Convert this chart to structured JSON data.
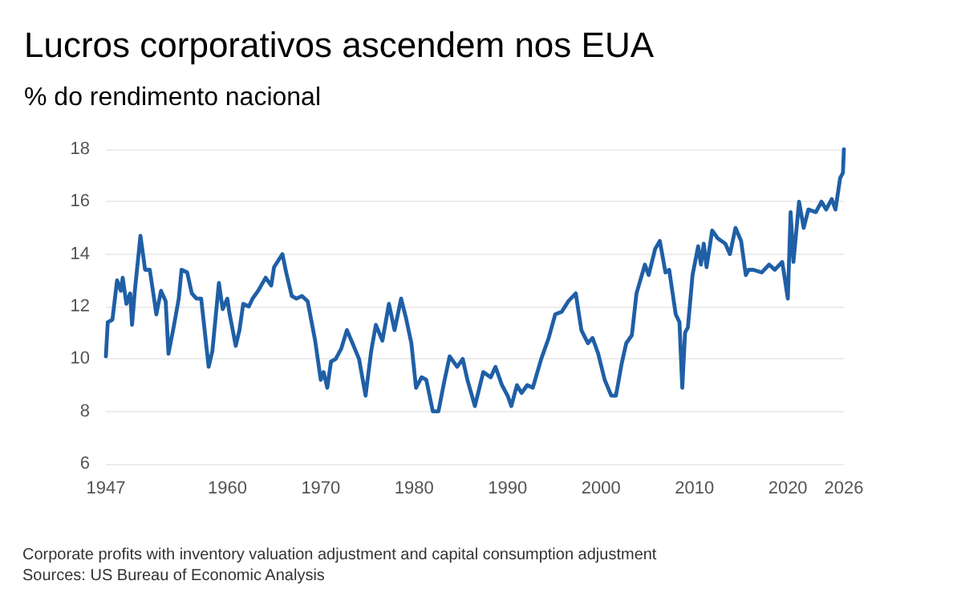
{
  "chart_data": {
    "type": "line",
    "title": "Lucros corporativos ascendem nos EUA",
    "subtitle": "% do rendimento nacional",
    "annotations": [
      "Corporate profits with inventory valuation adjustment and capital consumption adjustment",
      "Sources: US Bureau of Economic Analysis"
    ],
    "x": [
      1947,
      1947.2,
      1947.7,
      1948.2,
      1948.6,
      1948.8,
      1949.2,
      1949.6,
      1949.8,
      1950.1,
      1950.7,
      1951.2,
      1951.7,
      1952.2,
      1952.4,
      1952.9,
      1953.4,
      1953.7,
      1954.3,
      1954.8,
      1955.1,
      1955.7,
      1956.2,
      1956.7,
      1957.2,
      1958,
      1958.4,
      1959.1,
      1959.5,
      1960,
      1960.2,
      1960.9,
      1961.3,
      1961.7,
      1962.3,
      1962.7,
      1963.3,
      1964.1,
      1964.7,
      1965,
      1965.9,
      1966.3,
      1966.9,
      1967.4,
      1968,
      1968.6,
      1969.4,
      1970,
      1970.3,
      1970.7,
      1971.1,
      1971.6,
      1972.2,
      1972.8,
      1973.4,
      1974.1,
      1974.8,
      1975.4,
      1975.9,
      1976.6,
      1977.3,
      1977.9,
      1978.6,
      1979.1,
      1979.7,
      1980.2,
      1980.8,
      1981.3,
      1982,
      1982.6,
      1983.2,
      1983.8,
      1984.6,
      1985.2,
      1985.7,
      1986.5,
      1987.4,
      1988.2,
      1988.7,
      1989.4,
      1990,
      1990.4,
      1991,
      1991.5,
      1992.1,
      1992.7,
      1993.6,
      1994.4,
      1995.1,
      1995.8,
      1996.5,
      1997.3,
      1997.9,
      1998.6,
      1999.1,
      1999.7,
      2000.4,
      2001.1,
      2001.6,
      2002.2,
      2002.7,
      2003.3,
      2003.8,
      2004.7,
      2005.1,
      2005.8,
      2006.3,
      2006.9,
      2007.3,
      2008,
      2008.4,
      2008.7,
      2009,
      2009.3,
      2009.8,
      2010.4,
      2010.7,
      2011,
      2011.3,
      2011.9,
      2012.5,
      2013.3,
      2013.8,
      2014.4,
      2015,
      2015.5,
      2015.8,
      2016.3,
      2017.2,
      2018,
      2018.6,
      2019.4,
      2020,
      2020.3,
      2020.6,
      2021.2,
      2021.7,
      2022.2,
      2023,
      2023.6,
      2024.1,
      2024.7,
      2025.1,
      2025.6,
      2025.9,
      2026
    ],
    "series": [
      {
        "color": "#1f5fa6",
        "values": [
          10.1,
          11.4,
          11.5,
          13.0,
          12.6,
          13.1,
          12.1,
          12.5,
          11.3,
          12.6,
          14.7,
          13.4,
          13.4,
          12.2,
          11.7,
          12.6,
          12.2,
          10.2,
          11.3,
          12.3,
          13.4,
          13.3,
          12.5,
          12.3,
          12.3,
          9.7,
          10.3,
          12.9,
          11.9,
          12.3,
          11.8,
          10.5,
          11.1,
          12.1,
          12.0,
          12.3,
          12.6,
          13.1,
          12.8,
          13.5,
          14.0,
          13.3,
          12.4,
          12.3,
          12.4,
          12.2,
          10.7,
          9.2,
          9.5,
          8.9,
          9.9,
          10.0,
          10.4,
          11.1,
          10.6,
          10.0,
          8.6,
          10.3,
          11.3,
          10.7,
          12.1,
          11.1,
          12.3,
          11.6,
          10.6,
          8.9,
          9.3,
          9.2,
          8.0,
          8.0,
          9.1,
          10.1,
          9.7,
          10.0,
          9.2,
          8.2,
          9.5,
          9.3,
          9.7,
          9.0,
          8.6,
          8.2,
          9.0,
          8.7,
          9.0,
          8.9,
          10.0,
          10.8,
          11.7,
          11.8,
          12.2,
          12.5,
          11.1,
          10.6,
          10.8,
          10.2,
          9.2,
          8.6,
          8.6,
          9.8,
          10.6,
          10.9,
          12.5,
          13.6,
          13.2,
          14.2,
          14.5,
          13.3,
          13.4,
          11.7,
          11.4,
          8.9,
          11.0,
          11.2,
          13.2,
          14.3,
          13.6,
          14.4,
          13.5,
          14.9,
          14.6,
          14.4,
          14.0,
          15.0,
          14.5,
          13.2,
          13.4,
          13.4,
          13.3,
          13.6,
          13.4,
          13.7,
          12.3,
          15.6,
          13.7,
          16.0,
          15.0,
          15.7,
          15.6,
          16.0,
          15.7,
          16.1,
          15.7,
          16.9,
          17.1,
          18.0
        ]
      }
    ],
    "xlim": [
      1947,
      2026
    ],
    "xticks": [
      1947,
      1960,
      1970,
      1980,
      1990,
      2000,
      2010,
      2020,
      2026
    ],
    "ylim": [
      6,
      18
    ],
    "yticks": [
      6,
      8,
      10,
      12,
      14,
      16,
      18
    ],
    "grid": "y",
    "marker": "none",
    "line_style": "solid"
  }
}
